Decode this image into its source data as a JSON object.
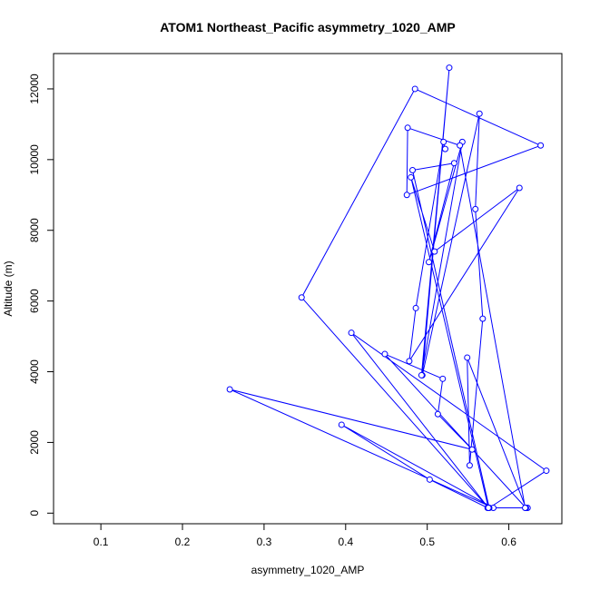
{
  "chart_data": {
    "type": "line",
    "title": "ATOM1 Northeast_Pacific asymmetry_1020_AMP",
    "xlabel": "asymmetry_1020_AMP",
    "ylabel": "Altitude (m)",
    "xlim": [
      0.042,
      0.665
    ],
    "ylim": [
      -300,
      13000
    ],
    "x_ticks": [
      0.1,
      0.2,
      0.3,
      0.4,
      0.5,
      0.6
    ],
    "x_tick_labels": [
      "0.1",
      "0.2",
      "0.3",
      "0.4",
      "0.5",
      "0.6"
    ],
    "y_ticks": [
      0,
      2000,
      4000,
      6000,
      8000,
      10000,
      12000
    ],
    "y_tick_labels": [
      "0",
      "2000",
      "4000",
      "6000",
      "8000",
      "10000",
      "12000"
    ],
    "grid": false,
    "color": "#0000ff",
    "markers": "open-circle",
    "series": [
      {
        "x": [
          0.623,
          0.574,
          0.503,
          0.395,
          0.581,
          0.258,
          0.555,
          0.513,
          0.519,
          0.448,
          0.621,
          0.549,
          0.552,
          0.568,
          0.559,
          0.564,
          0.494,
          0.527,
          0.493,
          0.543,
          0.502,
          0.533,
          0.482,
          0.576,
          0.646,
          0.407,
          0.575,
          0.346,
          0.485,
          0.639,
          0.475,
          0.476,
          0.54,
          0.62,
          0.575,
          0.48,
          0.509,
          0.613,
          0.478,
          0.486,
          0.52,
          0.522
        ],
        "y": [
          150,
          150,
          950,
          2500,
          150,
          3500,
          1800,
          2800,
          3800,
          4500,
          150,
          4400,
          1350,
          5500,
          8600,
          11300,
          3900,
          12600,
          3900,
          10500,
          7100,
          9900,
          9700,
          150,
          1200,
          5100,
          150,
          6100,
          12000,
          10400,
          9000,
          10900,
          10400,
          150,
          150,
          9500,
          7400,
          9200,
          4300,
          5800,
          10500,
          10300
        ]
      }
    ]
  }
}
